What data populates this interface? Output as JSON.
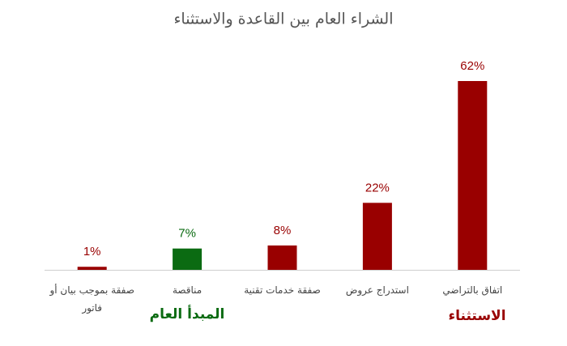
{
  "chart_data": {
    "type": "bar",
    "title": "الشراء العام بين القاعدة والاستثناء",
    "categories": [
      "صفقة بموجب بيان أو فاتور",
      "مناقصة",
      "صفقة خدمات تقنية",
      "استدراج عروض",
      "اتفاق بالتراضي"
    ],
    "values": [
      1,
      7,
      8,
      22,
      62
    ],
    "value_labels": [
      "1%",
      "7%",
      "8%",
      "22%",
      "62%"
    ],
    "colors": [
      "#990000",
      "#0b6b12",
      "#990000",
      "#990000",
      "#990000"
    ],
    "annotations": [
      {
        "text": "المبدأ العام",
        "color": "#0b6b12"
      },
      {
        "text": "الاستثناء",
        "color": "#990000"
      }
    ]
  }
}
